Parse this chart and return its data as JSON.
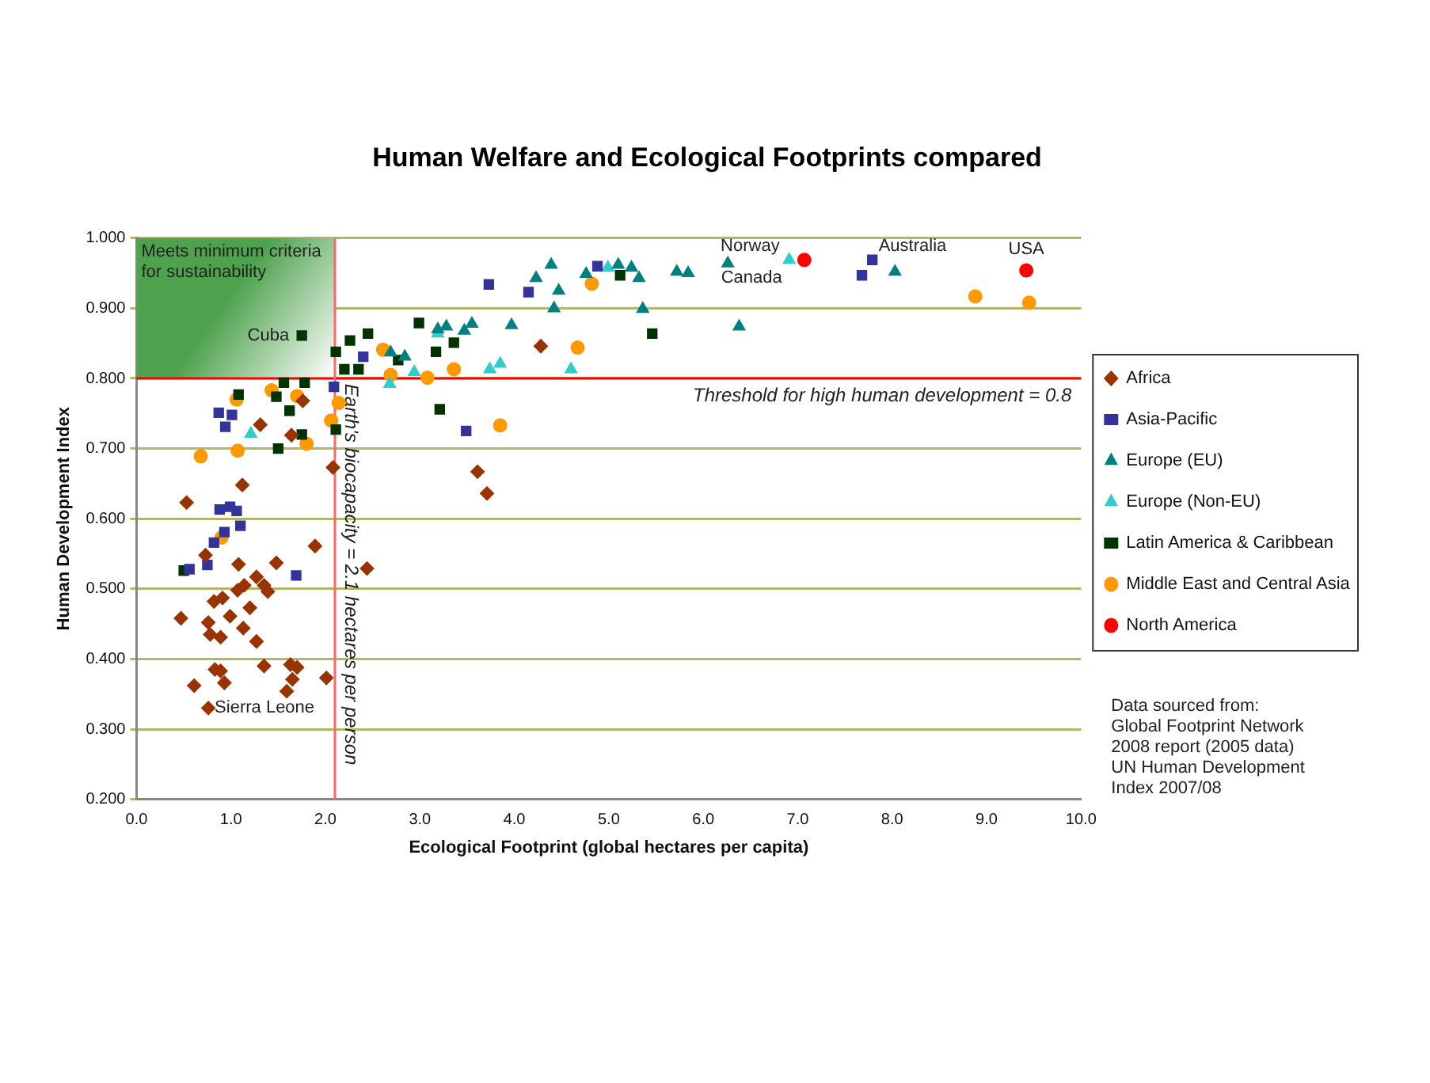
{
  "chart_data": {
    "type": "scatter",
    "title": "Human Welfare and Ecological Footprints compared",
    "xlabel": "Ecological Footprint (global hectares per capita)",
    "ylabel": "Human Development Index",
    "xlim": [
      0,
      10
    ],
    "xticks": [
      {
        "value": 0,
        "label": "0.0"
      },
      {
        "value": 1,
        "label": "1.0"
      },
      {
        "value": 2,
        "label": "2.0"
      },
      {
        "value": 3,
        "label": "3.0"
      },
      {
        "value": 4,
        "label": "4.0"
      },
      {
        "value": 5,
        "label": "5.0"
      },
      {
        "value": 6,
        "label": "6.0"
      },
      {
        "value": 7,
        "label": "7.0"
      },
      {
        "value": 8,
        "label": "8.0"
      },
      {
        "value": 9,
        "label": "9.0"
      },
      {
        "value": 10,
        "label": "10.0"
      }
    ],
    "ylim": [
      0.2,
      1
    ],
    "yticks": [
      {
        "value": 0.2,
        "label": "0.200"
      },
      {
        "value": 0.3,
        "label": "0.300"
      },
      {
        "value": 0.4,
        "label": "0.400"
      },
      {
        "value": 0.5,
        "label": "0.500"
      },
      {
        "value": 0.6,
        "label": "0.600"
      },
      {
        "value": 0.7,
        "label": "0.700"
      },
      {
        "value": 0.8,
        "label": "0.800"
      },
      {
        "value": 0.9,
        "label": "0.900"
      },
      {
        "value": 1,
        "label": "1.000"
      }
    ],
    "grid": "y",
    "legend": "right",
    "series": [
      {
        "name": "Africa",
        "color": "#993300",
        "marker": "diamond",
        "x": [
          1.76,
          1.31,
          1.64,
          2.08,
          1.12,
          0.53,
          1.89,
          0.73,
          1.08,
          1.48,
          2.44,
          1.27,
          1.35,
          1.14,
          1.07,
          1.39,
          0.91,
          0.82,
          1.2,
          0.47,
          0.99,
          0.76,
          0.78,
          0.89,
          1.13,
          1.27,
          1.35,
          0.83,
          0.89,
          1.63,
          1.7,
          1.65,
          2.01,
          0.93,
          0.61,
          1.59,
          0.76,
          4.28,
          3.61,
          3.71
        ],
        "values": [
          0.768,
          0.734,
          0.719,
          0.673,
          0.648,
          0.623,
          0.561,
          0.548,
          0.535,
          0.537,
          0.529,
          0.517,
          0.505,
          0.505,
          0.498,
          0.496,
          0.487,
          0.482,
          0.473,
          0.458,
          0.461,
          0.452,
          0.435,
          0.431,
          0.444,
          0.425,
          0.39,
          0.385,
          0.383,
          0.392,
          0.388,
          0.371,
          0.373,
          0.366,
          0.362,
          0.354,
          0.33,
          0.846,
          0.667,
          0.636
        ]
      },
      {
        "name": "Asia-Pacific",
        "color": "#333399",
        "marker": "square",
        "x": [
          2.4,
          2.09,
          0.87,
          1.01,
          0.94,
          0.88,
          0.99,
          1.06,
          1.1,
          0.93,
          0.82,
          0.75,
          0.56,
          1.69,
          3.73,
          4.15,
          4.88,
          3.49,
          7.79,
          7.68
        ],
        "values": [
          0.831,
          0.788,
          0.751,
          0.748,
          0.731,
          0.613,
          0.617,
          0.611,
          0.59,
          0.581,
          0.566,
          0.534,
          0.528,
          0.519,
          0.934,
          0.923,
          0.96,
          0.725,
          0.969,
          0.947
        ]
      },
      {
        "name": "Europe (EU)",
        "color": "#008080",
        "marker": "triangle",
        "x": [
          3.19,
          2.69,
          2.84,
          4.39,
          4.23,
          4.76,
          5.1,
          5.24,
          5.32,
          5.72,
          5.84,
          6.26,
          4.47,
          4.42,
          5.36,
          6.38,
          3.97,
          3.55,
          3.47,
          3.28,
          8.03
        ],
        "values": [
          0.87,
          0.837,
          0.831,
          0.962,
          0.943,
          0.949,
          0.962,
          0.958,
          0.943,
          0.952,
          0.95,
          0.964,
          0.925,
          0.9,
          0.899,
          0.874,
          0.876,
          0.878,
          0.868,
          0.874,
          0.952
        ]
      },
      {
        "name": "Europe (Non-EU)",
        "color": "#33cccc",
        "marker": "triangle",
        "x": [
          1.21,
          2.94,
          2.68,
          4.99,
          3.19,
          3.85,
          3.74,
          4.6,
          6.91
        ],
        "values": [
          0.721,
          0.809,
          0.792,
          0.958,
          0.864,
          0.821,
          0.813,
          0.813,
          0.969
        ]
      },
      {
        "name": "Latin America & Caribbean",
        "color": "#003300",
        "marker": "square",
        "x": [
          1.75,
          2.99,
          2.26,
          2.45,
          2.11,
          3.17,
          2.2,
          2.35,
          1.56,
          1.78,
          1.08,
          1.48,
          1.62,
          1.75,
          1.5,
          2.11,
          3.21,
          0.5,
          3.36,
          5.46,
          5.12,
          2.77
        ],
        "values": [
          0.861,
          0.879,
          0.854,
          0.864,
          0.838,
          0.838,
          0.813,
          0.813,
          0.794,
          0.794,
          0.777,
          0.774,
          0.754,
          0.72,
          0.7,
          0.727,
          0.756,
          0.526,
          0.851,
          0.864,
          0.947,
          0.826
        ]
      },
      {
        "name": "Middle East and Central Asia",
        "color": "#ff9900",
        "marker": "circle",
        "x": [
          2.61,
          2.69,
          3.08,
          1.06,
          1.43,
          1.7,
          2.14,
          2.06,
          1.8,
          1.07,
          0.68,
          0.9,
          4.82,
          4.67,
          3.36,
          3.85,
          8.88,
          9.45
        ],
        "values": [
          0.841,
          0.805,
          0.801,
          0.77,
          0.783,
          0.775,
          0.765,
          0.74,
          0.707,
          0.697,
          0.689,
          0.573,
          0.935,
          0.844,
          0.813,
          0.733,
          0.917,
          0.908
        ]
      },
      {
        "name": "North America",
        "color": "#ff0000",
        "marker": "circle",
        "x": [
          7.07,
          9.42
        ],
        "values": [
          0.969,
          0.954
        ]
      }
    ],
    "ref_lines": [
      {
        "axis": "y",
        "value": 0.8,
        "label": "Threshold for high human development = 0.8",
        "color": "#ff0000"
      },
      {
        "axis": "x",
        "value": 2.1,
        "label": "Earth's biocapacity = 2.1 hectares per person",
        "color": "#ff6666"
      }
    ],
    "bands": [
      {
        "axis": "x",
        "from": 0,
        "to": 2.1,
        "label": "Meets minimum criteria for sustainability",
        "color": "#4ea24e"
      }
    ],
    "annotations": [
      {
        "text": "Cuba",
        "x": 1.75,
        "y": 0.861
      },
      {
        "text": "Sierra Leone",
        "x": 0.76,
        "y": 0.33
      },
      {
        "text": "Norway",
        "x": 6.91,
        "y": 0.969
      },
      {
        "text": "Canada",
        "x": 7.07,
        "y": 0.969
      },
      {
        "text": "Australia",
        "x": 7.79,
        "y": 0.969
      },
      {
        "text": "USA",
        "x": 9.42,
        "y": 0.954
      },
      "Data sourced from:\nGlobal Footprint Network\n2008 report (2005 data)\nUN Human Development\nIndex 2007/08"
    ]
  }
}
